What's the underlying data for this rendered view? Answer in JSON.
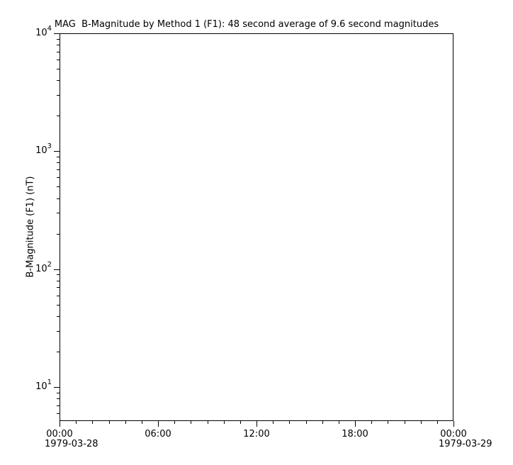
{
  "chart_data": {
    "type": "line",
    "title": "MAG  B-Magnitude by Method 1 (F1): 48 second average of 9.6 second magnitudes",
    "ylabel": "B-Magnitude (F1) (nT)",
    "background_color": "#ffffff",
    "axis_color": "#000000",
    "grid": false,
    "y_axis": {
      "scale": "log",
      "ylim": [
        5.15,
        10000
      ],
      "major_ticks": [
        {
          "value": 10000,
          "base": "10",
          "exp": "4"
        },
        {
          "value": 1000,
          "base": "10",
          "exp": "3"
        },
        {
          "value": 100,
          "base": "10",
          "exp": "2"
        },
        {
          "value": 10,
          "base": "10",
          "exp": "1"
        }
      ],
      "minor_tick_multiples": [
        2,
        3,
        4,
        5,
        6,
        7,
        8,
        9
      ]
    },
    "x_axis": {
      "start_date": "1979-03-28",
      "end_date": "1979-03-29",
      "xlim_hours": [
        0,
        24
      ],
      "major_ticks": [
        {
          "hour": 0,
          "label": "00:00"
        },
        {
          "hour": 6,
          "label": "06:00"
        },
        {
          "hour": 12,
          "label": "12:00"
        },
        {
          "hour": 18,
          "label": "18:00"
        },
        {
          "hour": 24,
          "label": "00:00"
        }
      ],
      "minor_tick_interval_hours": 1
    },
    "series": []
  }
}
